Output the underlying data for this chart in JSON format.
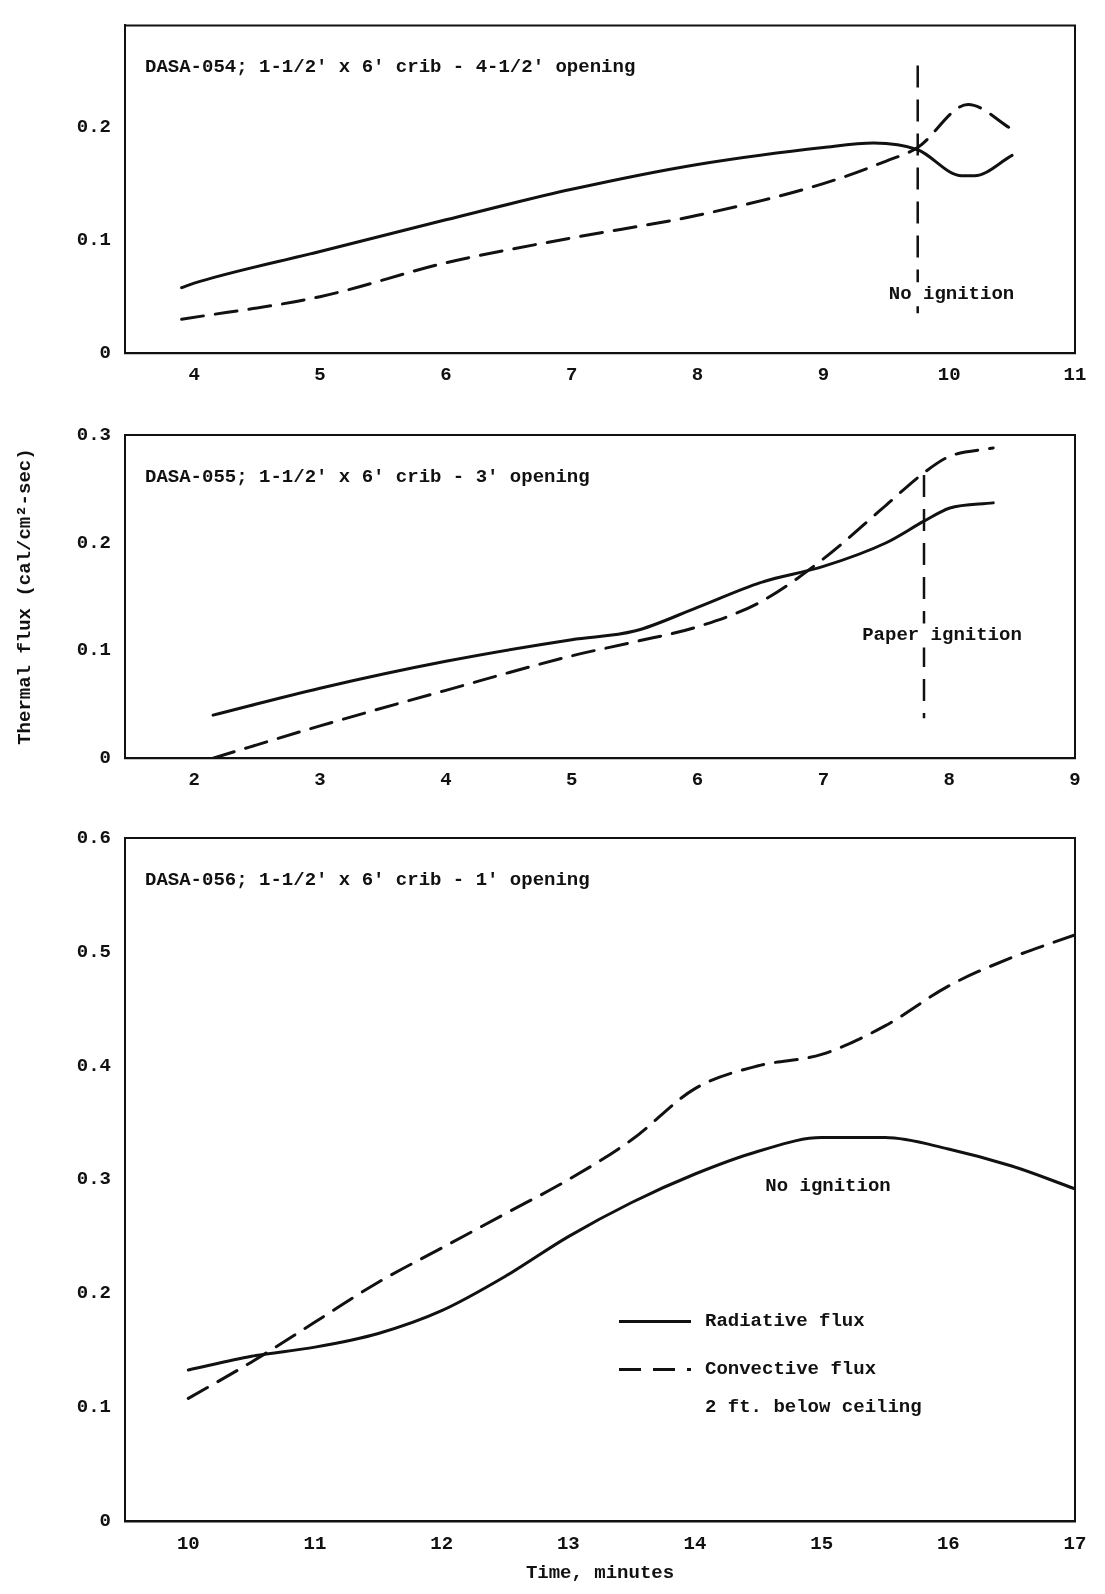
{
  "chart_data": [
    {
      "type": "line",
      "title": "DASA-054; 1-1/2' x 6' crib - 4-1/2' opening",
      "xlim": [
        3.45,
        11
      ],
      "xticks": [
        4,
        5,
        6,
        7,
        8,
        9,
        10,
        11
      ],
      "ylim": [
        0,
        0.29
      ],
      "yticks": [
        0,
        0.1,
        0.2
      ],
      "marker": "none",
      "series": [
        {
          "color": "#111111",
          "line_style": "solid",
          "x": [
            3.9,
            4,
            5,
            6,
            7,
            8,
            9,
            9.4,
            9.75,
            10.1,
            10.2,
            10.5
          ],
          "values": [
            0.058,
            0.062,
            0.09,
            0.118,
            0.145,
            0.167,
            0.182,
            0.186,
            0.18,
            0.157,
            0.157,
            0.175
          ]
        },
        {
          "color": "#111111",
          "line_style": "dashed",
          "x": [
            3.9,
            5,
            6,
            7,
            8,
            9,
            9.5,
            9.75,
            10.15,
            10.5
          ],
          "values": [
            0.03,
            0.05,
            0.08,
            0.102,
            0.122,
            0.15,
            0.17,
            0.182,
            0.22,
            0.198
          ]
        }
      ],
      "ref_lines": [
        {
          "axis": "x",
          "value": 9.75,
          "line_style": "dashed",
          "color": "#111111"
        }
      ],
      "annotations": [
        "No ignition"
      ]
    },
    {
      "type": "line",
      "title": "DASA-055; 1-1/2' x 6' crib - 3' opening",
      "ylabel": "Thermal flux (cal/cm²-sec)",
      "xlim": [
        1.45,
        9
      ],
      "xticks": [
        2,
        3,
        4,
        5,
        6,
        7,
        8,
        9
      ],
      "ylim": [
        0,
        0.3
      ],
      "yticks": [
        0,
        0.1,
        0.2,
        0.3
      ],
      "marker": "none",
      "series": [
        {
          "color": "#111111",
          "line_style": "solid",
          "x": [
            2.15,
            3,
            4,
            5,
            5.5,
            6,
            6.5,
            7,
            7.5,
            7.8,
            8,
            8.35
          ],
          "values": [
            0.04,
            0.065,
            0.09,
            0.11,
            0.118,
            0.14,
            0.163,
            0.178,
            0.2,
            0.22,
            0.232,
            0.237
          ]
        },
        {
          "color": "#111111",
          "line_style": "dashed",
          "x": [
            2.15,
            3,
            4,
            5,
            5.5,
            6,
            6.5,
            7,
            7.5,
            7.8,
            8,
            8.35
          ],
          "values": [
            0,
            0.03,
            0.063,
            0.095,
            0.108,
            0.122,
            0.145,
            0.185,
            0.235,
            0.265,
            0.28,
            0.288
          ]
        }
      ],
      "ref_lines": [
        {
          "axis": "x",
          "value": 7.8,
          "line_style": "dashed",
          "color": "#111111"
        }
      ],
      "annotations": [
        "Paper ignition"
      ]
    },
    {
      "type": "line",
      "title": "DASA-056; 1-1/2' x 6' crib - 1' opening",
      "xlabel": "Time, minutes",
      "xlim": [
        9.5,
        17
      ],
      "xticks": [
        10,
        11,
        12,
        13,
        14,
        15,
        16,
        17
      ],
      "ylim": [
        0,
        0.6
      ],
      "yticks": [
        0,
        0.1,
        0.2,
        0.3,
        0.4,
        0.5,
        0.6
      ],
      "marker": "none",
      "legend": "bottom right",
      "series": [
        {
          "name": "Radiative flux",
          "color": "#111111",
          "line_style": "solid",
          "x": [
            10,
            10.5,
            11,
            11.5,
            12,
            12.5,
            13,
            13.5,
            14,
            14.5,
            15,
            15.5,
            16,
            16.5,
            17
          ],
          "values": [
            0.133,
            0.145,
            0.153,
            0.165,
            0.185,
            0.215,
            0.25,
            0.28,
            0.305,
            0.325,
            0.337,
            0.337,
            0.327,
            0.312,
            0.292
          ]
        },
        {
          "name": "Convective flux\n2 ft. below ceiling",
          "color": "#111111",
          "line_style": "dashed",
          "x": [
            10,
            10.5,
            11,
            11.5,
            12,
            12.5,
            13,
            13.5,
            14,
            14.5,
            15,
            15.5,
            16,
            16.5,
            17
          ],
          "values": [
            0.108,
            0.14,
            0.175,
            0.21,
            0.24,
            0.27,
            0.3,
            0.335,
            0.38,
            0.4,
            0.41,
            0.435,
            0.47,
            0.495,
            0.515
          ]
        }
      ],
      "annotations": [
        "No ignition"
      ]
    }
  ]
}
